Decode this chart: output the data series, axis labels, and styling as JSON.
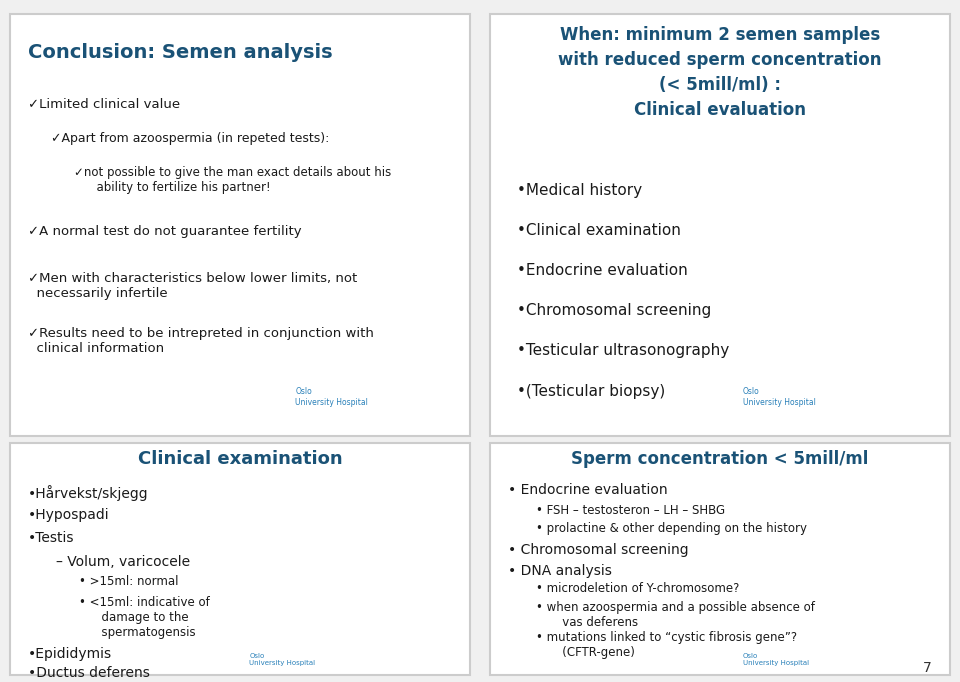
{
  "bg_color": "#f0f0f0",
  "panel_bg": "#ffffff",
  "border_color": "#cccccc",
  "title_color": "#1a5276",
  "bullet_color": "#1c1c1c",
  "page_number": "7",
  "panel1": {
    "title": "Conclusion: Semen analysis",
    "title_color": "#1a5276",
    "bullets": [
      {
        "level": 0,
        "text": "Limited clinical value"
      },
      {
        "level": 1,
        "text": "Apart from azoospermia (in repeted tests):"
      },
      {
        "level": 2,
        "text": "not possible to give the man exact details about his\n       ability to fertilize his partner!"
      },
      {
        "level": 0,
        "text": "A normal test do not guarantee fertility"
      },
      {
        "level": 0,
        "text": "Men with characteristics below lower limits, not\n  necessarily infertile"
      },
      {
        "level": 0,
        "text": "Results need to be intrepreted in conjunction with\n  clinical information"
      }
    ]
  },
  "panel2": {
    "title_line1": "When: minimum 2 semen samples",
    "title_line2": "with reduced sperm concentration",
    "title_line3": "(< 5mill/ml) :",
    "title_line4": "Clinical evaluation",
    "title_color": "#1a5276",
    "bullets": [
      "Medical history",
      "Clinical examination",
      "Endocrine evaluation",
      "Chromosomal screening",
      "Testicular ultrasonography",
      "(Testicular biopsy)"
    ]
  },
  "panel3": {
    "title": "Clinical examination",
    "title_color": "#1a5276",
    "bullets": [
      {
        "level": 0,
        "text": "Hårvekst/skjegg"
      },
      {
        "level": 0,
        "text": "Hypospadi"
      },
      {
        "level": 0,
        "text": "Testis"
      },
      {
        "level": 1,
        "text": "– Volum, varicocele"
      },
      {
        "level": 2,
        "text": "• >15ml: normal"
      },
      {
        "level": 2,
        "text": "• <15ml: indicative of\n      damage to the\n      spermatogensis"
      },
      {
        "level": 0,
        "text": "Epididymis"
      },
      {
        "level": 0,
        "text": "Ductus deferens"
      }
    ]
  },
  "panel4": {
    "title": "Sperm concentration < 5mill/ml",
    "title_color": "#1a5276",
    "items": [
      {
        "level": 0,
        "text": "Endocrine evaluation"
      },
      {
        "level": 1,
        "text": "FSH – testosteron – LH – SHBG"
      },
      {
        "level": 1,
        "text": "prolactine & other depending on the history"
      },
      {
        "level": 0,
        "text": "Chromosomal screening"
      },
      {
        "level": 0,
        "text": "DNA analysis"
      },
      {
        "level": 1,
        "text": "microdeletion of Y-chromosome?"
      },
      {
        "level": 1,
        "text": "when azoospermia and a possible absence of\n     vas deferens"
      },
      {
        "level": 1,
        "text": "mutations linked to “cystic fibrosis gene”?\n     (CFTR-gene)"
      }
    ]
  }
}
